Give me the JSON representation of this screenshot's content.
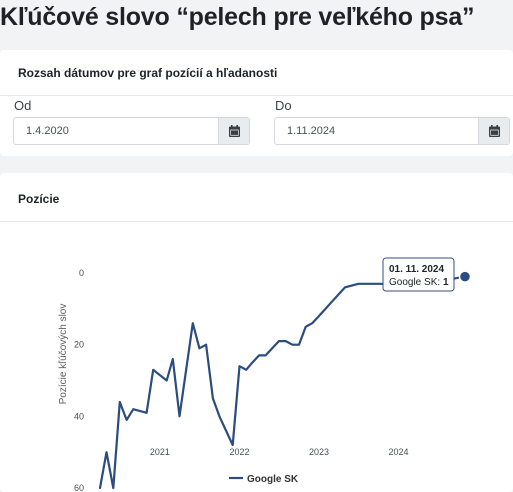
{
  "page": {
    "title": "Kľúčové slovo “pelech pre veľkého psa”"
  },
  "date_range": {
    "title": "Rozsah dátumov pre graf pozícií a hľadanosti",
    "from_label": "Od",
    "from_value": "1.4.2020",
    "to_label": "Do",
    "to_value": "1.11.2024",
    "calendar_icon": "calendar-icon"
  },
  "positions": {
    "title": "Pozície",
    "tooltip": {
      "date": "01. 11. 2024",
      "series_label": "Google SK:",
      "value": "1"
    }
  },
  "colors": {
    "line": "#2b4c7e",
    "marker": "#2b4c7e"
  },
  "chart_data": {
    "type": "line",
    "title": "",
    "xlabel": "",
    "ylabel": "Pozície kľúčových slov",
    "ylim": [
      60,
      0
    ],
    "y_reversed": true,
    "y_ticks": [
      "0",
      "20",
      "40",
      "60"
    ],
    "x_range": [
      "2020-04-01",
      "2024-11-01"
    ],
    "x_ticks": [
      "2021",
      "2022",
      "2023",
      "2024"
    ],
    "grid": false,
    "legend": "bottom",
    "series": [
      {
        "name": "Google SK",
        "points": [
          [
            "2020-04-01",
            60
          ],
          [
            "2020-05-01",
            50
          ],
          [
            "2020-06-01",
            60
          ],
          [
            "2020-07-01",
            36
          ],
          [
            "2020-08-01",
            41
          ],
          [
            "2020-09-01",
            38
          ],
          [
            "2020-11-01",
            39
          ],
          [
            "2020-12-01",
            27
          ],
          [
            "2021-02-01",
            30
          ],
          [
            "2021-03-01",
            24
          ],
          [
            "2021-04-01",
            40
          ],
          [
            "2021-06-01",
            14
          ],
          [
            "2021-07-01",
            21
          ],
          [
            "2021-08-01",
            20
          ],
          [
            "2021-09-01",
            35
          ],
          [
            "2021-10-01",
            40
          ],
          [
            "2021-12-01",
            48
          ],
          [
            "2022-01-01",
            26
          ],
          [
            "2022-02-01",
            27
          ],
          [
            "2022-03-01",
            25
          ],
          [
            "2022-04-01",
            23
          ],
          [
            "2022-05-01",
            23
          ],
          [
            "2022-07-01",
            19
          ],
          [
            "2022-08-01",
            19
          ],
          [
            "2022-09-01",
            20
          ],
          [
            "2022-10-01",
            20
          ],
          [
            "2022-11-01",
            15
          ],
          [
            "2022-12-01",
            14
          ],
          [
            "2023-01-01",
            12
          ],
          [
            "2023-03-01",
            8
          ],
          [
            "2023-05-01",
            4
          ],
          [
            "2023-07-01",
            3
          ],
          [
            "2023-09-01",
            3
          ],
          [
            "2024-01-01",
            3
          ],
          [
            "2024-05-01",
            3
          ],
          [
            "2024-08-01",
            2
          ],
          [
            "2024-11-01",
            1
          ]
        ]
      }
    ]
  }
}
